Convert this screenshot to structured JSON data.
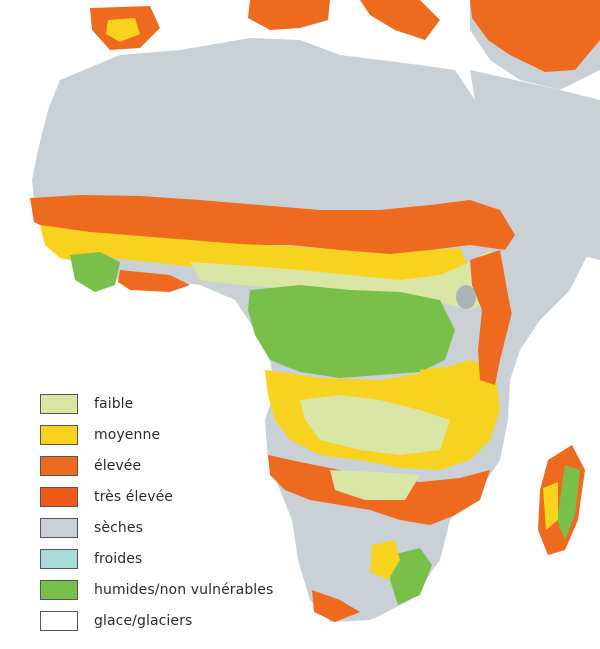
{
  "legend": {
    "items": [
      {
        "key": "faible",
        "label": "faible",
        "color": "#d9e6a6"
      },
      {
        "key": "moyenne",
        "label": "moyenne",
        "color": "#f7d21e"
      },
      {
        "key": "elevee",
        "label": "élevée",
        "color": "#ee6a1f"
      },
      {
        "key": "tres-elevee",
        "label": "très élevée",
        "color": "#ee5a1a"
      },
      {
        "key": "seches",
        "label": "sèches",
        "color": "#c9d1d6"
      },
      {
        "key": "froides",
        "label": "froides",
        "color": "#a9dcd9"
      },
      {
        "key": "humides",
        "label": "humides/non vulnérables",
        "color": "#79c04a"
      },
      {
        "key": "glace",
        "label": "glace/glaciers",
        "color": "#ffffff"
      }
    ]
  },
  "colors": {
    "sea": "#ffffff",
    "border": "#aab3b9"
  }
}
